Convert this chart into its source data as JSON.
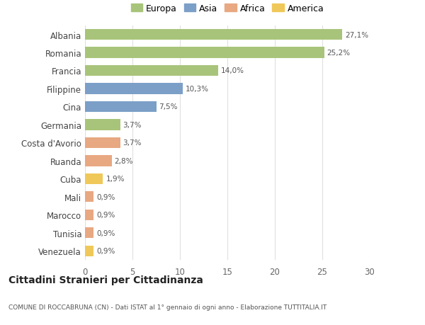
{
  "categories": [
    "Albania",
    "Romania",
    "Francia",
    "Filippine",
    "Cina",
    "Germania",
    "Costa d'Avorio",
    "Ruanda",
    "Cuba",
    "Mali",
    "Marocco",
    "Tunisia",
    "Venezuela"
  ],
  "values": [
    27.1,
    25.2,
    14.0,
    10.3,
    7.5,
    3.7,
    3.7,
    2.8,
    1.9,
    0.9,
    0.9,
    0.9,
    0.9
  ],
  "labels": [
    "27,1%",
    "25,2%",
    "14,0%",
    "10,3%",
    "7,5%",
    "3,7%",
    "3,7%",
    "2,8%",
    "1,9%",
    "0,9%",
    "0,9%",
    "0,9%",
    "0,9%"
  ],
  "colors": [
    "#a8c47a",
    "#a8c47a",
    "#a8c47a",
    "#7b9fc7",
    "#7b9fc7",
    "#a8c47a",
    "#e8a882",
    "#e8a882",
    "#f0c85a",
    "#e8a882",
    "#e8a882",
    "#e8a882",
    "#f0c85a"
  ],
  "continent": [
    "Europa",
    "Europa",
    "Europa",
    "Asia",
    "Asia",
    "Europa",
    "Africa",
    "Africa",
    "America",
    "Africa",
    "Africa",
    "Africa",
    "America"
  ],
  "legend_labels": [
    "Europa",
    "Asia",
    "Africa",
    "America"
  ],
  "legend_colors": [
    "#a8c47a",
    "#7b9fc7",
    "#e8a882",
    "#f0c85a"
  ],
  "title": "Cittadini Stranieri per Cittadinanza",
  "subtitle": "COMUNE DI ROCCABRUNA (CN) - Dati ISTAT al 1° gennaio di ogni anno - Elaborazione TUTTITALIA.IT",
  "xlim": [
    0,
    30
  ],
  "xticks": [
    0,
    5,
    10,
    15,
    20,
    25,
    30
  ],
  "bg_color": "#ffffff",
  "grid_color": "#e0e0e0"
}
